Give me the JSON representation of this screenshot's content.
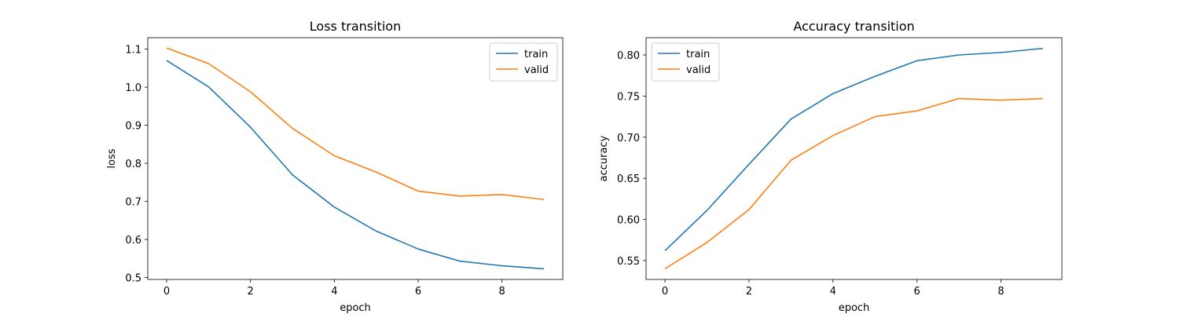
{
  "chart_data": [
    {
      "type": "line",
      "title": "Loss transition",
      "xlabel": "epoch",
      "ylabel": "loss",
      "x": [
        0,
        1,
        2,
        3,
        4,
        5,
        6,
        7,
        8,
        9
      ],
      "xlim": [
        -0.45,
        9.45
      ],
      "ylim": [
        0.495,
        1.13
      ],
      "xticks": [
        0,
        2,
        4,
        6,
        8
      ],
      "xtick_labels": [
        "0",
        "2",
        "4",
        "6",
        "8"
      ],
      "yticks": [
        0.5,
        0.6,
        0.7,
        0.8,
        0.9,
        1.0,
        1.1
      ],
      "ytick_labels": [
        "0.5",
        "0.6",
        "0.7",
        "0.8",
        "0.9",
        "1.0",
        "1.1"
      ],
      "legend_position": "top-right",
      "grid": false,
      "series": [
        {
          "name": "train",
          "color": "#1f77b4",
          "values": [
            1.07,
            1.001,
            0.895,
            0.77,
            0.685,
            0.622,
            0.575,
            0.543,
            0.531,
            0.523
          ]
        },
        {
          "name": "valid",
          "color": "#ff7f0e",
          "values": [
            1.103,
            1.062,
            0.988,
            0.892,
            0.82,
            0.777,
            0.727,
            0.714,
            0.718,
            0.705
          ]
        }
      ]
    },
    {
      "type": "line",
      "title": "Accuracy transition",
      "xlabel": "epoch",
      "ylabel": "accuracy",
      "x": [
        0,
        1,
        2,
        3,
        4,
        5,
        6,
        7,
        8,
        9
      ],
      "xlim": [
        -0.45,
        9.45
      ],
      "ylim": [
        0.527,
        0.821
      ],
      "xticks": [
        0,
        2,
        4,
        6,
        8
      ],
      "xtick_labels": [
        "0",
        "2",
        "4",
        "6",
        "8"
      ],
      "yticks": [
        0.55,
        0.6,
        0.65,
        0.7,
        0.75,
        0.8
      ],
      "ytick_labels": [
        "0.55",
        "0.60",
        "0.65",
        "0.70",
        "0.75",
        "0.80"
      ],
      "legend_position": "top-left",
      "grid": false,
      "series": [
        {
          "name": "train",
          "color": "#1f77b4",
          "values": [
            0.562,
            0.611,
            0.667,
            0.722,
            0.753,
            0.774,
            0.793,
            0.8,
            0.803,
            0.808
          ]
        },
        {
          "name": "valid",
          "color": "#ff7f0e",
          "values": [
            0.54,
            0.572,
            0.612,
            0.672,
            0.702,
            0.725,
            0.732,
            0.747,
            0.745,
            0.747
          ]
        }
      ]
    }
  ]
}
